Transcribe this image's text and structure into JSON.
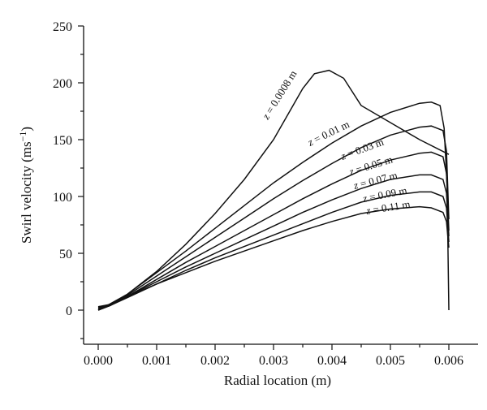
{
  "chart_data": {
    "type": "line",
    "title": "",
    "xlabel": "Radial location (m)",
    "ylabel_main": "Swirl velocity (ms",
    "ylabel_sup": "−1",
    "ylabel_close": ")",
    "xlim": [
      -0.00025,
      0.0065
    ],
    "ylim": [
      -30,
      250
    ],
    "x_ticks": [
      0,
      0.001,
      0.002,
      0.003,
      0.004,
      0.005,
      0.006
    ],
    "x_tick_labels": [
      "0.000",
      "0.001",
      "0.002",
      "0.003",
      "0.004",
      "0.005",
      "0.006"
    ],
    "y_ticks": [
      0,
      50,
      100,
      150,
      200,
      250
    ],
    "y_tick_labels": [
      "0",
      "50",
      "100",
      "150",
      "200",
      "250"
    ],
    "grid": false,
    "legend": "none",
    "line_color": "#111111",
    "series": [
      {
        "name": "z = 0.0008 m",
        "var": "z",
        "rest": " = 0.0008 m",
        "points": [
          [
            0,
            2
          ],
          [
            0.0002,
            5
          ],
          [
            0.0005,
            14
          ],
          [
            0.001,
            34
          ],
          [
            0.0015,
            58
          ],
          [
            0.002,
            85
          ],
          [
            0.0025,
            115
          ],
          [
            0.003,
            150
          ],
          [
            0.0035,
            195
          ],
          [
            0.0037,
            208
          ],
          [
            0.00395,
            211
          ],
          [
            0.0042,
            204
          ],
          [
            0.0045,
            180
          ],
          [
            0.005,
            165
          ],
          [
            0.0055,
            150
          ],
          [
            0.006,
            137
          ]
        ]
      },
      {
        "name": "z = 0.01 m",
        "var": "z",
        "rest": " = 0.01 m",
        "points": [
          [
            0,
            3
          ],
          [
            0.00015,
            4
          ],
          [
            0.0005,
            14
          ],
          [
            0.001,
            33
          ],
          [
            0.0015,
            52
          ],
          [
            0.002,
            72
          ],
          [
            0.0025,
            92
          ],
          [
            0.003,
            112
          ],
          [
            0.0035,
            130
          ],
          [
            0.004,
            147
          ],
          [
            0.0045,
            162
          ],
          [
            0.005,
            174
          ],
          [
            0.0055,
            182
          ],
          [
            0.0057,
            183
          ],
          [
            0.00585,
            180
          ],
          [
            0.00592,
            160
          ],
          [
            0.00597,
            110
          ],
          [
            0.006,
            0
          ]
        ]
      },
      {
        "name": "z = 0.03 m",
        "var": "z",
        "rest": " = 0.03 m",
        "points": [
          [
            0,
            1
          ],
          [
            0.0002,
            4
          ],
          [
            0.0005,
            13
          ],
          [
            0.001,
            30
          ],
          [
            0.0015,
            47
          ],
          [
            0.002,
            64
          ],
          [
            0.0025,
            81
          ],
          [
            0.003,
            98
          ],
          [
            0.0035,
            114
          ],
          [
            0.004,
            129
          ],
          [
            0.0045,
            143
          ],
          [
            0.005,
            154
          ],
          [
            0.0055,
            161
          ],
          [
            0.0057,
            162
          ],
          [
            0.0059,
            158
          ],
          [
            0.00596,
            140
          ],
          [
            0.006,
            80
          ]
        ]
      },
      {
        "name": "z = 0.05 m",
        "var": "z",
        "rest": " = 0.05 m",
        "points": [
          [
            0,
            0
          ],
          [
            0.0002,
            4
          ],
          [
            0.0005,
            12
          ],
          [
            0.001,
            27
          ],
          [
            0.0015,
            42
          ],
          [
            0.002,
            56
          ],
          [
            0.0025,
            70
          ],
          [
            0.003,
            84
          ],
          [
            0.0035,
            98
          ],
          [
            0.004,
            111
          ],
          [
            0.0045,
            123
          ],
          [
            0.005,
            132
          ],
          [
            0.0055,
            138
          ],
          [
            0.0057,
            139
          ],
          [
            0.0059,
            135
          ],
          [
            0.00596,
            120
          ],
          [
            0.006,
            70
          ]
        ]
      },
      {
        "name": "z = 0.07 m",
        "var": "z",
        "rest": " = 0.07 m",
        "points": [
          [
            0,
            0
          ],
          [
            0.0002,
            4
          ],
          [
            0.0005,
            12
          ],
          [
            0.001,
            25
          ],
          [
            0.0015,
            38
          ],
          [
            0.002,
            50
          ],
          [
            0.0025,
            62
          ],
          [
            0.003,
            74
          ],
          [
            0.0035,
            86
          ],
          [
            0.004,
            97
          ],
          [
            0.0045,
            107
          ],
          [
            0.005,
            115
          ],
          [
            0.0055,
            119
          ],
          [
            0.0057,
            119
          ],
          [
            0.0059,
            115
          ],
          [
            0.00596,
            103
          ],
          [
            0.006,
            65
          ]
        ]
      },
      {
        "name": "z = 0.09 m",
        "var": "z",
        "rest": " = 0.09 m",
        "points": [
          [
            0,
            1
          ],
          [
            0.0002,
            4
          ],
          [
            0.0005,
            11
          ],
          [
            0.001,
            23
          ],
          [
            0.0015,
            35
          ],
          [
            0.002,
            46
          ],
          [
            0.0025,
            56
          ],
          [
            0.003,
            66
          ],
          [
            0.0035,
            76
          ],
          [
            0.004,
            86
          ],
          [
            0.0045,
            95
          ],
          [
            0.005,
            101
          ],
          [
            0.0055,
            104
          ],
          [
            0.0057,
            104
          ],
          [
            0.0059,
            100
          ],
          [
            0.00596,
            90
          ],
          [
            0.006,
            60
          ]
        ]
      },
      {
        "name": "z = 0.11 m",
        "var": "z",
        "rest": " = 0.11 m",
        "points": [
          [
            0,
            3
          ],
          [
            0.0002,
            5
          ],
          [
            0.0005,
            12
          ],
          [
            0.001,
            23
          ],
          [
            0.0015,
            33
          ],
          [
            0.002,
            43
          ],
          [
            0.0025,
            52
          ],
          [
            0.003,
            61
          ],
          [
            0.0035,
            70
          ],
          [
            0.004,
            78
          ],
          [
            0.0045,
            85
          ],
          [
            0.005,
            89
          ],
          [
            0.0055,
            91
          ],
          [
            0.0057,
            90
          ],
          [
            0.0059,
            86
          ],
          [
            0.00596,
            78
          ],
          [
            0.006,
            55
          ]
        ]
      }
    ]
  }
}
